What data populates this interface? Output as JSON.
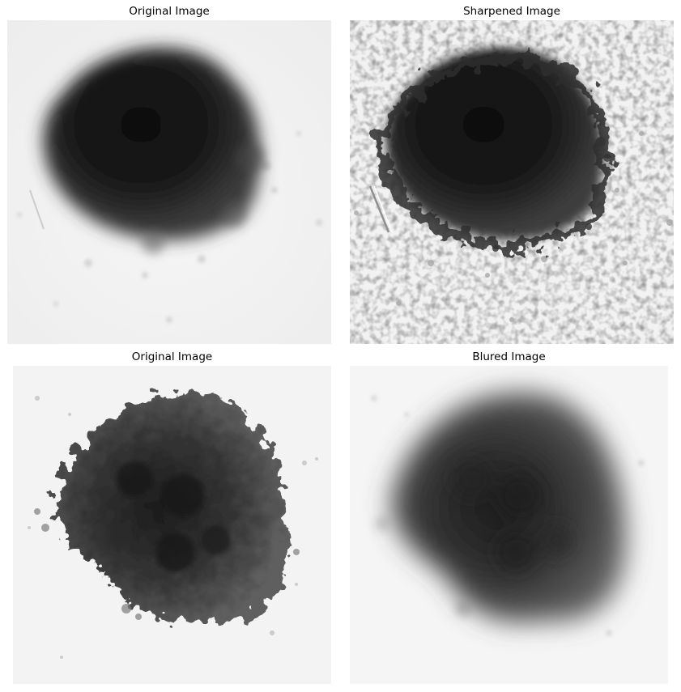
{
  "panels": [
    {
      "title": "Original Image",
      "image": "spheroid-original"
    },
    {
      "title": "Sharpened Image",
      "image": "spheroid-sharpened"
    },
    {
      "title": "Original Image",
      "image": "spheroid-original-2"
    },
    {
      "title": "Blured Image",
      "image": "spheroid-blurred"
    }
  ],
  "colors": {
    "background": "#f4f4f4",
    "cell_dark": "#151515",
    "cell_mid": "#4a4a4a",
    "title_text": "#000000"
  }
}
